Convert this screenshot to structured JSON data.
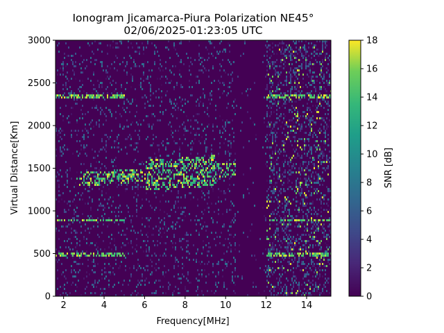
{
  "chart_data": {
    "type": "heatmap",
    "title_line1": "Ionogram Jicamarca-Piura Polarization NE45°",
    "title_line2": "02/06/2025-01:23:05 UTC",
    "xlabel": "Frequency[MHz]",
    "ylabel": "Virtual Distance[Km]",
    "xlim": [
      1.6,
      15.2
    ],
    "ylim": [
      0,
      3000
    ],
    "x_ticks": [
      "2",
      "4",
      "6",
      "8",
      "10",
      "12",
      "14"
    ],
    "x_tick_values": [
      2,
      4,
      6,
      8,
      10,
      12,
      14
    ],
    "y_ticks": [
      "0",
      "500",
      "1000",
      "1500",
      "2000",
      "2500",
      "3000"
    ],
    "y_tick_values": [
      0,
      500,
      1000,
      1500,
      2000,
      2500,
      3000
    ],
    "colorbar": {
      "label": "SNR [dB]",
      "range": [
        0,
        18
      ],
      "ticks": [
        "0",
        "2",
        "4",
        "6",
        "8",
        "10",
        "12",
        "14",
        "16",
        "18"
      ],
      "tick_values": [
        0,
        2,
        4,
        6,
        8,
        10,
        12,
        14,
        16,
        18
      ],
      "colormap": "viridis"
    },
    "features": {
      "echo_trace": {
        "freq_mhz": [
          2.6,
          10.5
        ],
        "distance_km": [
          1250,
          1700
        ],
        "snr_db": [
          12,
          18
        ]
      },
      "interference_lines_km": [
        2350,
        900,
        500
      ],
      "quiet_band_mhz": [
        10.5,
        11.9
      ],
      "noisy_band_mhz": [
        12.0,
        15.2
      ]
    }
  },
  "colors": {
    "viridis_low": "#440154",
    "viridis_mid": "#21918c",
    "viridis_high": "#fde725"
  }
}
